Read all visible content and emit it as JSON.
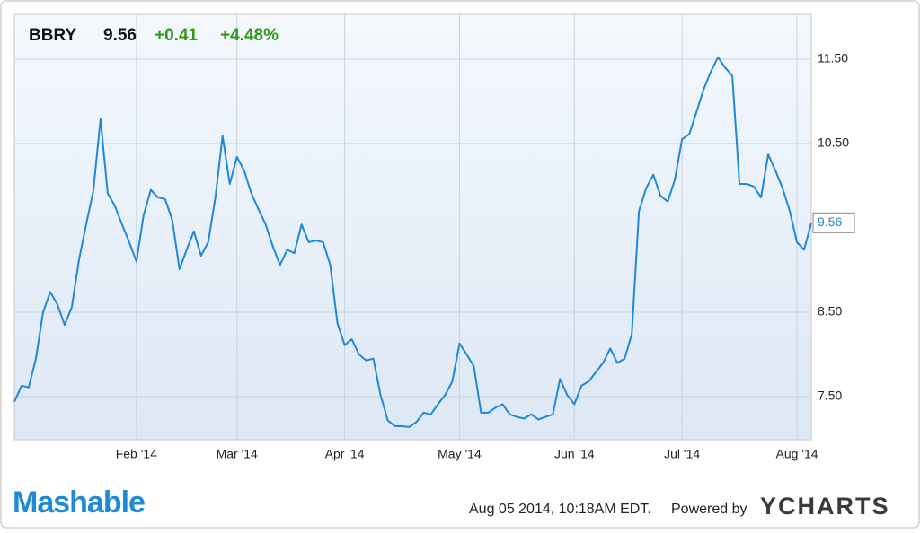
{
  "chart_data": {
    "type": "line",
    "ticker": "BBRY",
    "price": "9.56",
    "change": "+0.41",
    "change_percent": "+4.48%",
    "categories": [
      null,
      null,
      null,
      null,
      null,
      null,
      null,
      null,
      null,
      null,
      null,
      null,
      null,
      null,
      null,
      null,
      null,
      "Feb '14",
      null,
      null,
      null,
      null,
      null,
      null,
      null,
      null,
      null,
      null,
      null,
      null,
      null,
      "Mar '14",
      null,
      null,
      null,
      null,
      null,
      null,
      null,
      null,
      null,
      null,
      null,
      null,
      null,
      null,
      "Apr '14",
      null,
      null,
      null,
      null,
      null,
      null,
      null,
      null,
      null,
      null,
      null,
      null,
      null,
      null,
      null,
      "May '14",
      null,
      null,
      null,
      null,
      null,
      null,
      null,
      null,
      null,
      null,
      null,
      null,
      null,
      null,
      null,
      "Jun '14",
      null,
      null,
      null,
      null,
      null,
      null,
      null,
      null,
      null,
      null,
      null,
      null,
      null,
      null,
      "Jul '14",
      null,
      null,
      null,
      null,
      null,
      null,
      null,
      null,
      null,
      null,
      null,
      null,
      null,
      null,
      null,
      "Aug '14",
      null,
      null
    ],
    "series": [
      {
        "name": "BBRY",
        "color": "#1f88d9",
        "values": [
          7.44,
          7.63,
          7.61,
          7.95,
          8.5,
          8.74,
          8.59,
          8.35,
          8.56,
          9.12,
          9.54,
          9.94,
          10.79,
          9.91,
          9.76,
          9.54,
          9.33,
          9.1,
          9.65,
          9.95,
          9.86,
          9.84,
          9.59,
          9.01,
          9.24,
          9.46,
          9.17,
          9.33,
          9.86,
          10.59,
          10.02,
          10.34,
          10.18,
          9.91,
          9.72,
          9.54,
          9.28,
          9.06,
          9.24,
          9.2,
          9.54,
          9.33,
          9.35,
          9.33,
          9.06,
          8.37,
          8.11,
          8.18,
          8.0,
          7.93,
          7.95,
          7.52,
          7.22,
          7.15,
          7.15,
          7.14,
          7.2,
          7.31,
          7.29,
          7.41,
          7.52,
          7.68,
          8.13,
          8.0,
          7.86,
          7.31,
          7.31,
          7.37,
          7.41,
          7.29,
          7.26,
          7.24,
          7.29,
          7.23,
          7.26,
          7.29,
          7.71,
          7.52,
          7.41,
          7.63,
          7.68,
          7.79,
          7.9,
          8.07,
          7.9,
          7.95,
          8.24,
          9.7,
          9.97,
          10.13,
          9.88,
          9.81,
          10.07,
          10.55,
          10.61,
          10.87,
          11.14,
          11.35,
          11.52,
          11.4,
          11.3,
          10.02,
          10.02,
          9.99,
          9.86,
          10.37,
          10.18,
          9.97,
          9.7,
          9.33,
          9.24,
          9.56
        ]
      }
    ],
    "ylim": [
      6.99,
      12.03
    ],
    "yticks": [
      {
        "value": 7.5,
        "label": "7.50"
      },
      {
        "value": 8.5,
        "label": "8.50"
      },
      {
        "value": 10.5,
        "label": "10.50"
      },
      {
        "value": 11.5,
        "label": "11.50"
      }
    ],
    "grid": true
  },
  "footer": {
    "brand": "Mashable",
    "timestamp": "Aug 05 2014, 10:18AM EDT.",
    "powered_by": "Powered by",
    "provider": "YCHARTS"
  }
}
